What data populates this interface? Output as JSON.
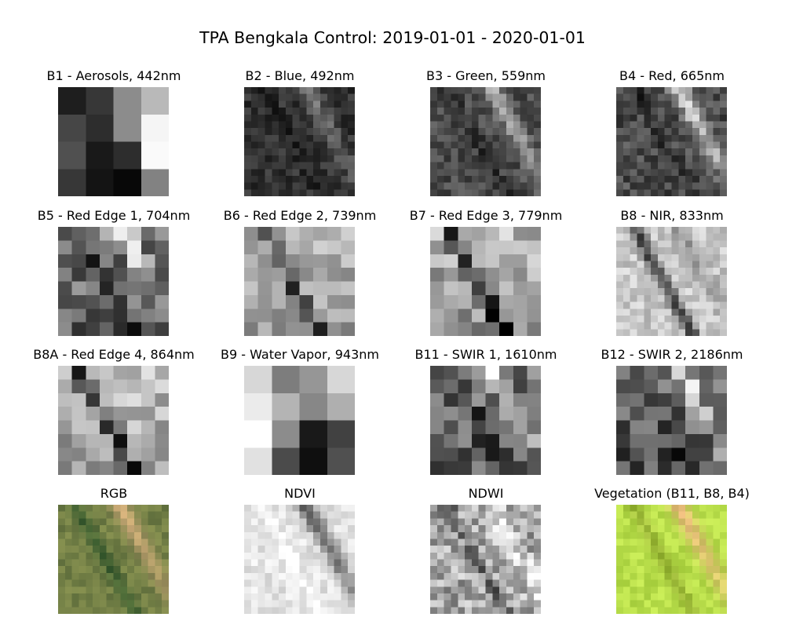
{
  "chart_data": {
    "type": "image-grid",
    "title": "TPA Bengkala Control: 2019-01-01 - 2020-01-01",
    "panels": [
      {
        "title": "B1 - Aerosols, 442nm",
        "mode": "gray",
        "grid": 4,
        "pattern": "aerosol"
      },
      {
        "title": "B2 - Blue, 492nm",
        "mode": "gray",
        "grid": 16,
        "pattern": "blue"
      },
      {
        "title": "B3 - Green, 559nm",
        "mode": "gray",
        "grid": 16,
        "pattern": "green"
      },
      {
        "title": "B4 - Red, 665nm",
        "mode": "gray",
        "grid": 16,
        "pattern": "red"
      },
      {
        "title": "B5 - Red Edge 1, 704nm",
        "mode": "gray",
        "grid": 8,
        "pattern": "rededge"
      },
      {
        "title": "B6 - Red Edge 2, 739nm",
        "mode": "gray",
        "grid": 8,
        "pattern": "rededge2"
      },
      {
        "title": "B7 - Red Edge 3, 779nm",
        "mode": "gray",
        "grid": 8,
        "pattern": "rededge3"
      },
      {
        "title": "B8 - NIR, 833nm",
        "mode": "gray",
        "grid": 16,
        "pattern": "nir"
      },
      {
        "title": "B8A - Red Edge 4, 864nm",
        "mode": "gray",
        "grid": 8,
        "pattern": "rededge4"
      },
      {
        "title": "B9 - Water Vapor, 943nm",
        "mode": "gray",
        "grid": 4,
        "pattern": "water"
      },
      {
        "title": "B11 - SWIR 1, 1610nm",
        "mode": "gray",
        "grid": 8,
        "pattern": "swir1"
      },
      {
        "title": "B12 - SWIR 2, 2186nm",
        "mode": "gray",
        "grid": 8,
        "pattern": "swir2"
      },
      {
        "title": "RGB",
        "mode": "rgb",
        "grid": 16,
        "pattern": "rgb"
      },
      {
        "title": "NDVI",
        "mode": "gray",
        "grid": 16,
        "pattern": "ndvi"
      },
      {
        "title": "NDWI",
        "mode": "gray",
        "grid": 16,
        "pattern": "ndwi"
      },
      {
        "title": "Vegetation (B11, B8, B4)",
        "mode": "rgb",
        "grid": 16,
        "pattern": "veg"
      }
    ]
  }
}
